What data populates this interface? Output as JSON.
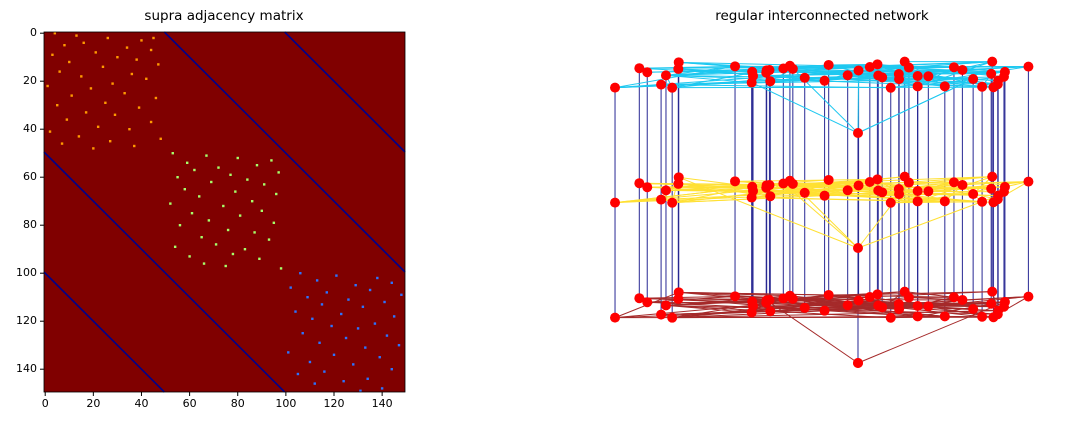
{
  "chart_data": [
    {
      "type": "heatmap",
      "title": "supra adjacency matrix",
      "xlim": [
        -0.5,
        149.5
      ],
      "ylim": [
        -0.5,
        149.5
      ],
      "xticks": [
        0,
        20,
        40,
        60,
        80,
        100,
        120,
        140
      ],
      "yticks": [
        0,
        20,
        40,
        60,
        80,
        100,
        120,
        140
      ],
      "background": "#800000",
      "diagonals": {
        "color": "#00008b",
        "offsets": [
          50,
          100
        ]
      },
      "blocks": [
        {
          "start": 0,
          "color": "#ff9a00",
          "cells": [
            [
              0,
              4
            ],
            [
              1,
              13
            ],
            [
              2,
              26
            ],
            [
              2,
              45
            ],
            [
              3,
              40
            ],
            [
              4,
              16
            ],
            [
              5,
              8
            ],
            [
              6,
              34
            ],
            [
              7,
              44
            ],
            [
              8,
              21
            ],
            [
              9,
              3
            ],
            [
              10,
              30
            ],
            [
              11,
              38
            ],
            [
              12,
              10
            ],
            [
              13,
              47
            ],
            [
              14,
              24
            ],
            [
              16,
              6
            ],
            [
              17,
              36
            ],
            [
              18,
              15
            ],
            [
              19,
              42
            ],
            [
              21,
              28
            ],
            [
              22,
              1
            ],
            [
              23,
              19
            ],
            [
              25,
              33
            ],
            [
              26,
              11
            ],
            [
              27,
              46
            ],
            [
              29,
              25
            ],
            [
              30,
              5
            ],
            [
              31,
              39
            ],
            [
              33,
              17
            ],
            [
              34,
              29
            ],
            [
              36,
              9
            ],
            [
              37,
              44
            ],
            [
              39,
              22
            ],
            [
              40,
              35
            ],
            [
              41,
              2
            ],
            [
              43,
              14
            ],
            [
              44,
              48
            ],
            [
              45,
              27
            ],
            [
              46,
              7
            ],
            [
              47,
              37
            ],
            [
              48,
              20
            ]
          ]
        },
        {
          "start": 50,
          "color": "#a6ff6a",
          "cells": [
            [
              0,
              3
            ],
            [
              1,
              17
            ],
            [
              2,
              30
            ],
            [
              3,
              44
            ],
            [
              4,
              9
            ],
            [
              5,
              38
            ],
            [
              6,
              22
            ],
            [
              7,
              12
            ],
            [
              8,
              47
            ],
            [
              9,
              27
            ],
            [
              10,
              5
            ],
            [
              11,
              34
            ],
            [
              12,
              19
            ],
            [
              13,
              41
            ],
            [
              15,
              8
            ],
            [
              16,
              29
            ],
            [
              17,
              46
            ],
            [
              18,
              14
            ],
            [
              20,
              36
            ],
            [
              21,
              2
            ],
            [
              22,
              24
            ],
            [
              24,
              40
            ],
            [
              25,
              11
            ],
            [
              26,
              31
            ],
            [
              28,
              18
            ],
            [
              29,
              45
            ],
            [
              30,
              6
            ],
            [
              32,
              26
            ],
            [
              33,
              37
            ],
            [
              35,
              15
            ],
            [
              36,
              43
            ],
            [
              38,
              21
            ],
            [
              39,
              4
            ],
            [
              40,
              33
            ],
            [
              42,
              28
            ],
            [
              43,
              10
            ],
            [
              44,
              39
            ],
            [
              46,
              16
            ],
            [
              47,
              25
            ],
            [
              48,
              48
            ]
          ]
        },
        {
          "start": 100,
          "color": "#2c73ff",
          "cells": [
            [
              0,
              6
            ],
            [
              1,
              21
            ],
            [
              2,
              38
            ],
            [
              3,
              13
            ],
            [
              4,
              44
            ],
            [
              5,
              29
            ],
            [
              6,
              2
            ],
            [
              7,
              35
            ],
            [
              8,
              17
            ],
            [
              9,
              48
            ],
            [
              10,
              9
            ],
            [
              11,
              26
            ],
            [
              12,
              41
            ],
            [
              13,
              15
            ],
            [
              14,
              32
            ],
            [
              16,
              4
            ],
            [
              17,
              23
            ],
            [
              18,
              45
            ],
            [
              19,
              11
            ],
            [
              21,
              37
            ],
            [
              22,
              19
            ],
            [
              23,
              30
            ],
            [
              25,
              7
            ],
            [
              26,
              42
            ],
            [
              27,
              25
            ],
            [
              29,
              14
            ],
            [
              30,
              47
            ],
            [
              31,
              33
            ],
            [
              33,
              1
            ],
            [
              34,
              20
            ],
            [
              35,
              39
            ],
            [
              37,
              10
            ],
            [
              38,
              28
            ],
            [
              40,
              44
            ],
            [
              41,
              16
            ],
            [
              42,
              5
            ],
            [
              44,
              34
            ],
            [
              45,
              24
            ],
            [
              46,
              12
            ],
            [
              48,
              40
            ],
            [
              49,
              31
            ]
          ]
        }
      ]
    },
    {
      "type": "network",
      "title": "regular interconnected network",
      "nodes_per_layer": 50,
      "node_color": "#ff0000",
      "interlayer_color": "#1a1a8c",
      "layers": [
        {
          "edge_color": "#1ec8f0"
        },
        {
          "edge_color": "#ffe033"
        },
        {
          "edge_color": "#a52a2a"
        }
      ]
    }
  ]
}
